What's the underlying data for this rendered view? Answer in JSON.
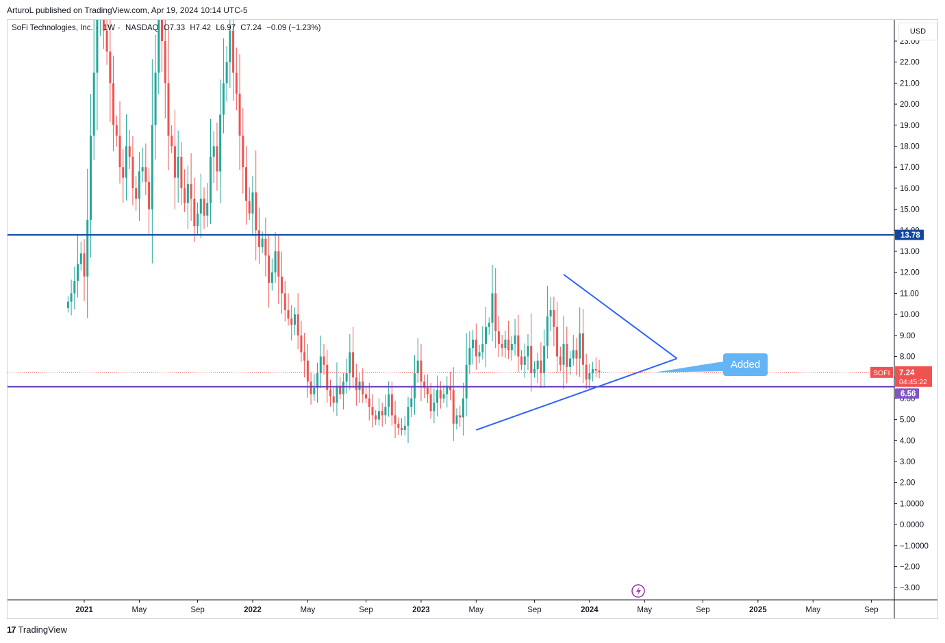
{
  "publish_line": "ArturoL published on TradingView.com, Apr 19, 2024 10:14 UTC-5",
  "legend": {
    "symbol": "SoFi Technologies, Inc.",
    "interval": "1W",
    "exchange": "NASDAQ",
    "open": "O7.33",
    "high": "H7.42",
    "low": "L6.97",
    "close": "C7.24",
    "change": "−0.09 (−1.23%)"
  },
  "currency_label": "USD",
  "footer": {
    "logo": "17",
    "brand": "TradingView"
  },
  "colors": {
    "up": "#26a69a",
    "down": "#ef5350",
    "resistance": "#0d47a1",
    "support": "#673ab7",
    "triangle": "#2962ff",
    "callout": "#64b5f6"
  },
  "chart_data": {
    "type": "candlestick",
    "title": "SoFi Technologies, Inc. · 1W · NASDAQ",
    "ylim": [
      -3.4,
      24.2
    ],
    "y_ticks": [
      "23.00",
      "22.00",
      "21.00",
      "20.00",
      "19.00",
      "18.00",
      "17.00",
      "16.00",
      "15.00",
      "14.00",
      "13.00",
      "12.00",
      "11.00",
      "10.00",
      "9.00",
      "8.00",
      "7.00",
      "6.00",
      "5.00",
      "4.00",
      "3.00",
      "2.00",
      "1.0000",
      "0.0000",
      "−1.0000",
      "−2.00",
      "−3.00"
    ],
    "x_ticks": [
      {
        "label": "2021",
        "bold": true,
        "t": 0
      },
      {
        "label": "May",
        "bold": false,
        "t": 17
      },
      {
        "label": "Sep",
        "bold": false,
        "t": 35
      },
      {
        "label": "2022",
        "bold": true,
        "t": 52
      },
      {
        "label": "May",
        "bold": false,
        "t": 69
      },
      {
        "label": "Sep",
        "bold": false,
        "t": 87
      },
      {
        "label": "2023",
        "bold": true,
        "t": 104
      },
      {
        "label": "May",
        "bold": false,
        "t": 121
      },
      {
        "label": "Sep",
        "bold": false,
        "t": 139
      },
      {
        "label": "2024",
        "bold": true,
        "t": 156
      },
      {
        "label": "May",
        "bold": false,
        "t": 173
      },
      {
        "label": "Sep",
        "bold": false,
        "t": 191
      },
      {
        "label": "2025",
        "bold": true,
        "t": 208
      },
      {
        "label": "May",
        "bold": false,
        "t": 225
      },
      {
        "label": "Sep",
        "bold": false,
        "t": 243
      }
    ],
    "close_series_weekly": [
      10.6,
      11.0,
      11.6,
      12.4,
      12.9,
      11.8,
      14.5,
      18.5,
      21.5,
      24.5,
      25.0,
      23.5,
      22.5,
      21.0,
      19.0,
      18.5,
      17.0,
      16.5,
      18.0,
      17.5,
      16.0,
      15.5,
      16.8,
      17.0,
      16.3,
      15.0,
      19.0,
      21.5,
      24.5,
      23.0,
      21.0,
      18.5,
      18.0,
      16.5,
      17.5,
      16.0,
      15.3,
      16.2,
      15.5,
      14.2,
      14.8,
      15.5,
      14.7,
      15.3,
      17.5,
      18.0,
      16.8,
      19.5,
      21.0,
      22.0,
      23.5,
      21.5,
      20.5,
      18.5,
      17.0,
      15.4,
      14.8,
      15.8,
      14.0,
      13.2,
      13.6,
      12.8,
      11.5,
      12.0,
      13.0,
      11.8,
      11.0,
      10.2,
      9.8,
      9.5,
      10.0,
      9.0,
      8.2,
      7.8,
      6.8,
      6.2,
      6.5,
      7.2,
      8.0,
      7.6,
      6.4,
      6.1,
      5.8,
      6.6,
      6.2,
      6.8,
      7.2,
      8.2,
      7.0,
      6.4,
      6.8,
      6.2,
      6.0,
      5.6,
      5.2,
      5.0,
      5.4,
      5.2,
      5.6,
      6.2,
      5.2,
      4.8,
      4.6,
      4.5,
      4.7,
      5.6,
      6.0,
      7.2,
      7.8,
      6.8,
      6.5,
      6.2,
      5.4,
      5.8,
      6.4,
      6.0,
      6.2,
      6.6,
      6.4,
      4.8,
      5.2,
      5.1,
      6.0,
      7.6,
      8.4,
      8.8,
      8.0,
      8.2,
      8.6,
      9.4,
      9.6,
      11.0,
      9.2,
      8.6,
      8.4,
      8.8,
      8.3,
      8.6,
      9.0,
      8.0,
      7.6,
      8.0,
      8.5,
      7.2,
      7.4,
      7.8,
      7.2,
      8.5,
      9.9,
      10.2,
      9.4,
      8.0,
      7.6,
      8.6,
      7.5,
      7.9,
      8.3,
      7.9,
      9.1,
      7.6,
      6.9,
      7.2,
      7.4,
      7.33,
      7.24
    ],
    "resistance_line": {
      "value": 13.78,
      "label": "13.78"
    },
    "support_line": {
      "value": 6.56,
      "label": "6.56"
    },
    "last_price": {
      "symbol": "SOFI",
      "value": 7.24,
      "label": "7.24",
      "countdown": "04:45:22"
    },
    "triangle": {
      "upper": [
        {
          "t": 148,
          "v": 11.9
        },
        {
          "t": 183,
          "v": 7.9
        }
      ],
      "lower": [
        {
          "t": 121,
          "v": 4.5
        },
        {
          "t": 183,
          "v": 7.9
        }
      ]
    },
    "callout": {
      "text": "Added",
      "anchor": {
        "t": 176,
        "v": 7.24
      }
    }
  }
}
